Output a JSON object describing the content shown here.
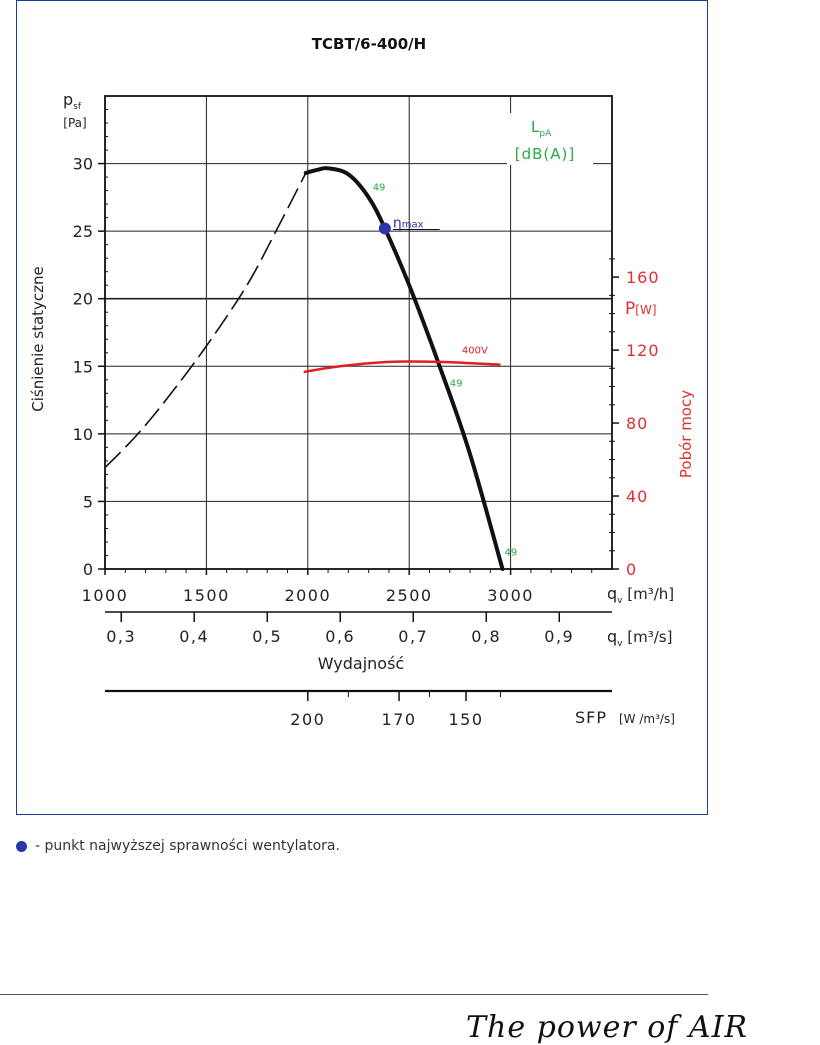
{
  "chart_data": {
    "type": "line",
    "title": "TCBT/6-400/H",
    "y_label_main": "Ciśnienie statyczne",
    "y_symbol": "p",
    "y_symbol_sub": "sf",
    "y_unit": "[Pa]",
    "y_ticks": [
      0,
      5,
      10,
      15,
      20,
      25,
      30
    ],
    "ylim": [
      0,
      35
    ],
    "x_ticks_m3h": [
      "1000",
      "1500",
      "2000",
      "2500",
      "3000"
    ],
    "xlim_m3h": [
      1000,
      3500
    ],
    "x_ticks_m3s": [
      "0,3",
      "0,4",
      "0,5",
      "0,6",
      "0,7",
      "0,8",
      "0,9"
    ],
    "x_symbol": "q",
    "x_symbol_sub": "v",
    "x_unit_m3h": "[m³/h]",
    "x_unit_m3s": "[m³/s]",
    "x_label": "Wydajność",
    "power_symbol": "P",
    "power_unit": "[W]",
    "power_label": "Pobór mocy",
    "power_ticks": [
      "0",
      "40",
      "80",
      "120",
      "160"
    ],
    "power_lim": [
      0,
      160
    ],
    "lpa_symbol": "L",
    "lpa_sub": "pA",
    "lpa_unit": "[dB(A)]",
    "sfp_label": "SFP",
    "sfp_unit": "[W /m³/s]",
    "sfp_ticks": [
      {
        "label": "200",
        "x": 2000
      },
      {
        "label": "170",
        "x": 2450
      },
      {
        "label": "150",
        "x": 2780
      }
    ],
    "eta_label": "η",
    "eta_sub": "max",
    "eta_point": {
      "x": 2380,
      "y": 25.2
    },
    "series": [
      {
        "kind": "pressure-dashed",
        "points": [
          [
            1000,
            7.5
          ],
          [
            1150,
            9.8
          ],
          [
            1300,
            12.5
          ],
          [
            1500,
            16.5
          ],
          [
            1700,
            21.0
          ],
          [
            1850,
            25.2
          ],
          [
            1990,
            29.3
          ]
        ]
      },
      {
        "kind": "pressure-solid",
        "points": [
          [
            1990,
            29.3
          ],
          [
            2050,
            29.55
          ],
          [
            2100,
            29.65
          ],
          [
            2200,
            29.2
          ],
          [
            2300,
            27.5
          ],
          [
            2380,
            25.2
          ],
          [
            2500,
            21.0
          ],
          [
            2650,
            15.0
          ],
          [
            2800,
            8.5
          ],
          [
            2960,
            0
          ]
        ]
      },
      {
        "name": "400V",
        "kind": "power",
        "points": [
          [
            1980,
            108
          ],
          [
            2150,
            111
          ],
          [
            2400,
            113.5
          ],
          [
            2650,
            113.5
          ],
          [
            2950,
            112
          ]
        ]
      }
    ],
    "annotations": [
      {
        "text": "49",
        "x": 2320,
        "y": 28.0
      },
      {
        "text": "49",
        "x": 2700,
        "y": 13.5
      },
      {
        "text": "49",
        "x": 2970,
        "y": 1.0
      }
    ],
    "legend_text": "- punkt najwyższej sprawności wentylatora.",
    "footer_text": "The power of AIR",
    "colors": {
      "frame": "#1e3a8a",
      "grid": "#222222",
      "curve": "#111111",
      "power": "#e02020",
      "lpa": "#2aa84a",
      "eta_dot": "#2b35a8",
      "power_axis": "#e03030"
    }
  }
}
